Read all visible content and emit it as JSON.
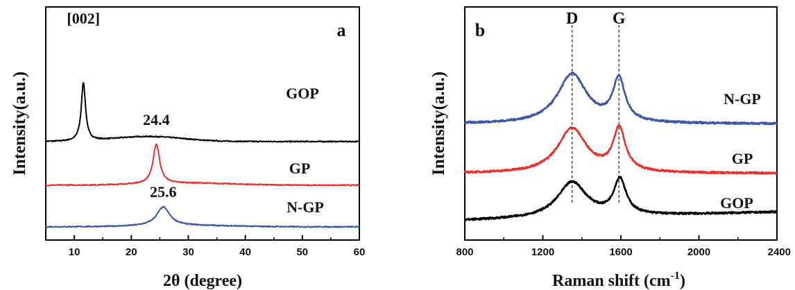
{
  "chart_data": [
    {
      "type": "line",
      "panel_label": "a",
      "xlabel": "2θ (degree)",
      "ylabel": "Intensity(a.u.)",
      "xlim": [
        5,
        60
      ],
      "xticks": [
        10,
        20,
        30,
        40,
        50,
        60
      ],
      "yticks_shown": false,
      "series": [
        {
          "name": "GOP",
          "color": "#000000",
          "offset": 2.05,
          "peaks": [
            {
              "center": 11.6,
              "height": 1.4,
              "width": 0.45
            }
          ],
          "hump": {
            "center": 23,
            "height": 0.12,
            "width": 6
          },
          "baseline": 0.0
        },
        {
          "name": "GP",
          "color": "#e8312f",
          "offset": 1.0,
          "peaks": [
            {
              "center": 24.4,
              "height": 0.95,
              "width": 0.7
            }
          ],
          "hump": {
            "center": 30,
            "height": 0.05,
            "width": 8
          },
          "baseline": 0.0
        },
        {
          "name": "N-GP",
          "color": "#3a56a8",
          "offset": 0.0,
          "peaks": [
            {
              "center": 25.6,
              "height": 0.45,
              "width": 1.4
            }
          ],
          "hump": {
            "center": 30,
            "height": 0.03,
            "width": 8
          },
          "baseline": 0.0
        }
      ],
      "annotations": [
        {
          "text": "[002]",
          "x": 11.6,
          "series": "GOP"
        },
        {
          "text": "24.4",
          "x": 24.4,
          "series": "GP"
        },
        {
          "text": "25.6",
          "x": 25.6,
          "series": "N-GP"
        }
      ]
    },
    {
      "type": "line",
      "panel_label": "b",
      "xlabel": "Raman shift (cm⁻¹)",
      "xlabel_main": "Raman shift (cm",
      "xlabel_sup": "-1",
      "xlabel_end": ")",
      "ylabel": "Intensity(a.u.)",
      "xlim": [
        800,
        2400
      ],
      "xticks": [
        800,
        1200,
        1600,
        2000,
        2400
      ],
      "yticks_shown": false,
      "series": [
        {
          "name": "N-GP",
          "color": "#3a56a8",
          "offset": 2.05,
          "D": {
            "center": 1350,
            "height": 1.05
          },
          "G": {
            "center": 1590,
            "height": 0.9
          }
        },
        {
          "name": "GP",
          "color": "#e8312f",
          "offset": 1.0,
          "D": {
            "center": 1350,
            "height": 0.95
          },
          "G": {
            "center": 1592,
            "height": 0.9
          }
        },
        {
          "name": "GOP",
          "color": "#000000",
          "offset": 0.0,
          "D": {
            "center": 1350,
            "height": 0.75
          },
          "G": {
            "center": 1595,
            "height": 0.75
          }
        }
      ],
      "reference_lines": [
        {
          "label": "D",
          "x": 1350
        },
        {
          "label": "G",
          "x": 1590
        }
      ]
    }
  ]
}
